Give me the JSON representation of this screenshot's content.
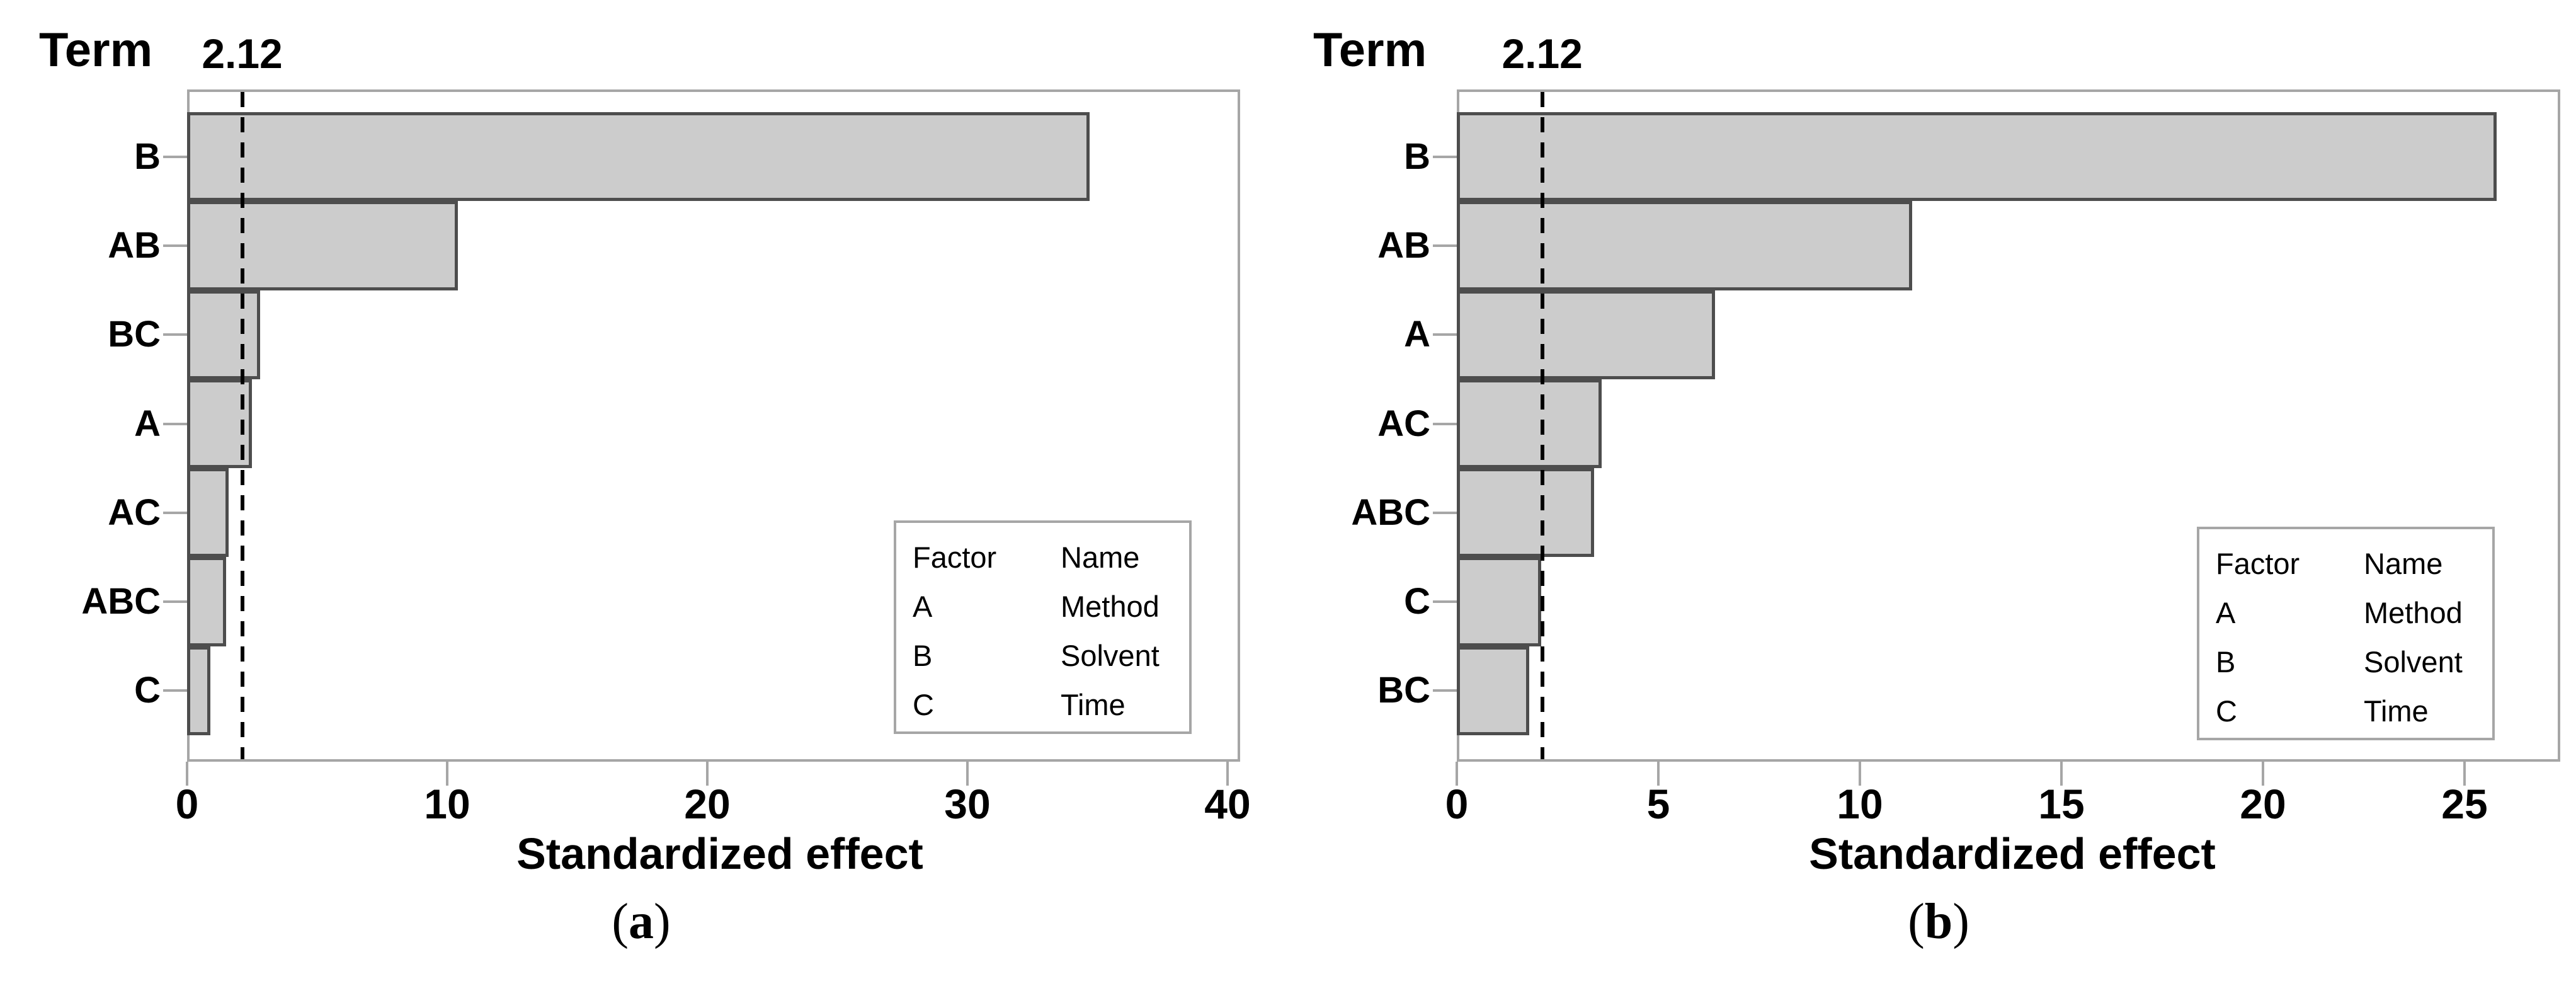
{
  "style": {
    "background": "#ffffff",
    "bar_fill": "#cccccc",
    "bar_border": "#4d4d4d",
    "axis_color": "#a6a6a6",
    "reference_line_color": "#000000",
    "text_color": "#000000"
  },
  "chart_data": [
    {
      "type": "bar",
      "orientation": "horizontal",
      "panel": "a",
      "term_axis_title": "Term",
      "categories": [
        "B",
        "AB",
        "BC",
        "A",
        "AC",
        "ABC",
        "C"
      ],
      "values": [
        34.7,
        10.4,
        2.8,
        2.5,
        1.6,
        1.5,
        0.9
      ],
      "xlabel": "Standardized effect",
      "x_ticks": [
        0,
        10,
        20,
        30,
        40
      ],
      "xlim": [
        0,
        40.5
      ],
      "grid": "off",
      "reference_line": {
        "value": 2.12,
        "label": "2.12",
        "style": "dashed"
      },
      "legend": {
        "position": "inside-bottom-right",
        "headers": [
          "Factor",
          "Name"
        ],
        "rows": [
          [
            "A",
            "Method"
          ],
          [
            "B",
            "Solvent"
          ],
          [
            "C",
            "Time"
          ]
        ]
      },
      "caption": {
        "open": "(",
        "letter": "a",
        "close": ")"
      }
    },
    {
      "type": "bar",
      "orientation": "horizontal",
      "panel": "b",
      "term_axis_title": "Term",
      "categories": [
        "B",
        "AB",
        "A",
        "AC",
        "ABC",
        "C",
        "BC"
      ],
      "values": [
        25.8,
        11.3,
        6.4,
        3.6,
        3.4,
        2.1,
        1.8
      ],
      "xlabel": "Standardized effect",
      "x_ticks": [
        0,
        5,
        10,
        15,
        20,
        25
      ],
      "xlim": [
        0,
        27.4
      ],
      "grid": "off",
      "reference_line": {
        "value": 2.12,
        "label": "2.12",
        "style": "dashed"
      },
      "legend": {
        "position": "inside-bottom-right",
        "headers": [
          "Factor",
          "Name"
        ],
        "rows": [
          [
            "A",
            "Method"
          ],
          [
            "B",
            "Solvent"
          ],
          [
            "C",
            "Time"
          ]
        ]
      },
      "caption": {
        "open": "(",
        "letter": "b",
        "close": ")"
      }
    }
  ]
}
